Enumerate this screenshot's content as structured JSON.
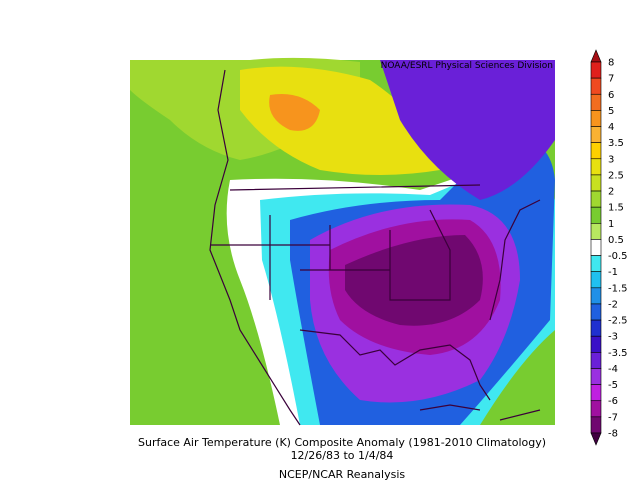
{
  "credit": "NOAA/ESRL Physical Sciences Division",
  "caption": [
    "Surface Air Temperature (K) Composite Anomaly (1981-2010 Climatology)",
    "12/26/83  to 1/4/84",
    "NCEP/NCAR Reanalysis"
  ],
  "colorbar": {
    "labels": [
      "8",
      "7",
      "6",
      "5",
      "4",
      "3.5",
      "3",
      "2.5",
      "2",
      "1.5",
      "1",
      "0.5",
      "-0.5",
      "-1",
      "-1.5",
      "-2",
      "-2.5",
      "-3",
      "-3.5",
      "-4",
      "-5",
      "-6",
      "-7",
      "-8"
    ],
    "colors": [
      "#a50f15",
      "#e0201c",
      "#f04a20",
      "#f26d1f",
      "#f7941d",
      "#f9b233",
      "#fed000",
      "#e8e010",
      "#c8e020",
      "#a0d830",
      "#78cc30",
      "#b8e860",
      "#ffffff",
      "#40e8f0",
      "#20c0f0",
      "#2090e8",
      "#2060e0",
      "#2030d0",
      "#3a10c8",
      "#6a20d8",
      "#9a30e0",
      "#c020e0",
      "#a010a0",
      "#700870",
      "#400040"
    ]
  }
}
